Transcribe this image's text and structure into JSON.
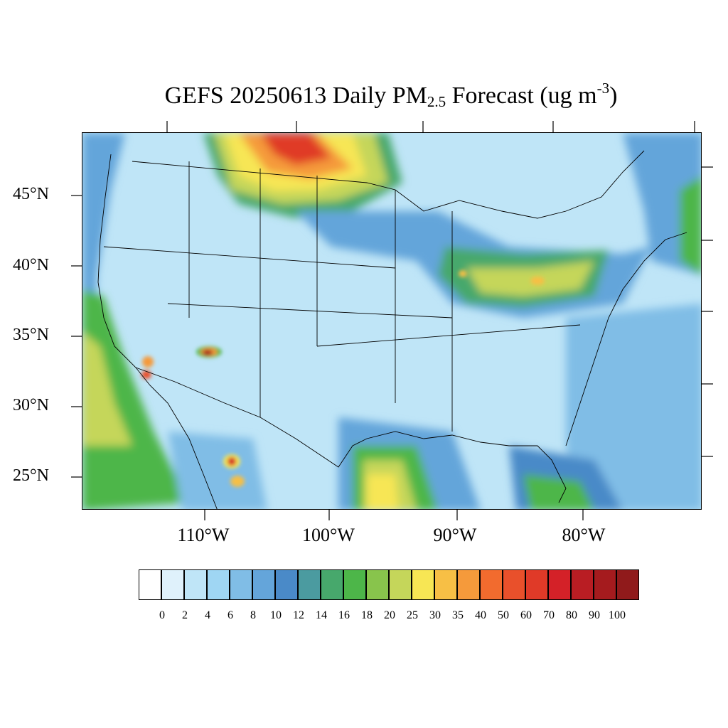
{
  "title": {
    "prefix": "GEFS 20250613 Daily PM",
    "sub": "2.5",
    "middle": " Forecast (ug m",
    "sup": "-3",
    "suffix": ")"
  },
  "latitude_labels": [
    "45°N",
    "40°N",
    "35°N",
    "30°N",
    "25°N"
  ],
  "longitude_labels": [
    "110°W",
    "100°W",
    "90°W",
    "80°W"
  ],
  "colorbar": {
    "colors": [
      "#ffffff",
      "#dff1fb",
      "#bfe5f7",
      "#9fd6f3",
      "#80bde6",
      "#64a5da",
      "#4a8ac8",
      "#4b9ba0",
      "#47a86c",
      "#4db649",
      "#88c44c",
      "#c5d65a",
      "#f7e654",
      "#f7bf45",
      "#f59a3b",
      "#f26b2e",
      "#e9502b",
      "#e03a28",
      "#d42128",
      "#b91d23",
      "#a51b1e",
      "#901a1b"
    ],
    "levels": [
      "0",
      "2",
      "4",
      "6",
      "8",
      "10",
      "12",
      "14",
      "16",
      "18",
      "20",
      "25",
      "30",
      "35",
      "40",
      "50",
      "60",
      "70",
      "80",
      "90",
      "100"
    ]
  },
  "legend_hint": "color-filled contours of daily mean PM2.5 concentration"
}
